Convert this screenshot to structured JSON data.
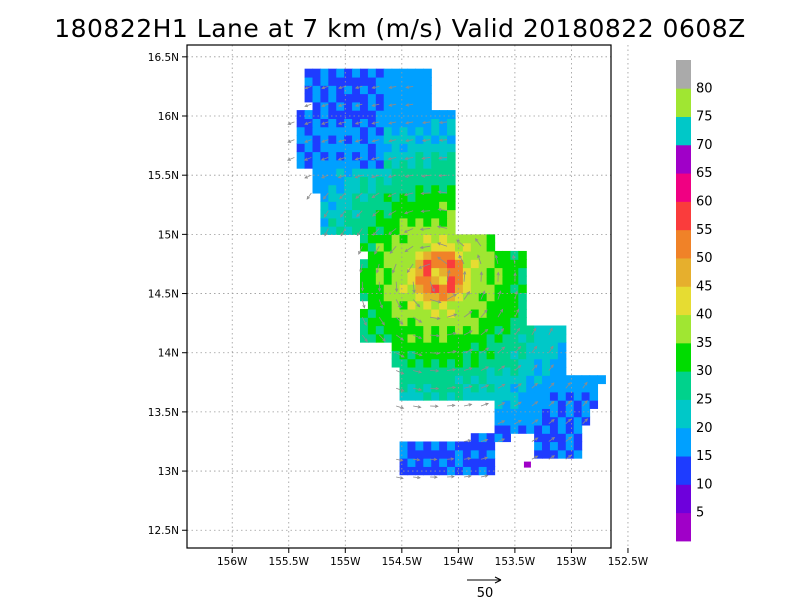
{
  "chart_data": {
    "type": "heatmap",
    "title": "180822H1 Lane at 7 km (m/s) Valid 20180822 0608Z",
    "xlabel": "",
    "ylabel": "",
    "x_ticks": [
      "156W",
      "155.5W",
      "155W",
      "154.5W",
      "154W",
      "153.5W",
      "153W",
      "152.5W"
    ],
    "y_ticks": [
      "16.5N",
      "16N",
      "15.5N",
      "15N",
      "14.5N",
      "14N",
      "13.5N",
      "13N",
      "12.5N"
    ],
    "xlim": [
      -156.4,
      -152.65
    ],
    "ylim": [
      12.35,
      16.6
    ],
    "grid": true,
    "center": {
      "lon": -154.2,
      "lat": 14.62
    },
    "max_wind": 58,
    "colorbar": {
      "labels": [
        "5",
        "10",
        "15",
        "20",
        "25",
        "30",
        "35",
        "40",
        "45",
        "50",
        "55",
        "60",
        "65",
        "70",
        "75",
        "80"
      ],
      "colors": [
        "#a000c8",
        "#6e00dc",
        "#1e3cff",
        "#00a0ff",
        "#00c8c8",
        "#00d28c",
        "#00dc00",
        "#a0e632",
        "#e6dc32",
        "#e6af2d",
        "#f08228",
        "#fa3c3c",
        "#f00082",
        "#a000c8",
        "#00c8c8",
        "#a0e632",
        "#aaaaaa"
      ]
    },
    "vector_reference": {
      "label": "50",
      "value": 50
    }
  }
}
